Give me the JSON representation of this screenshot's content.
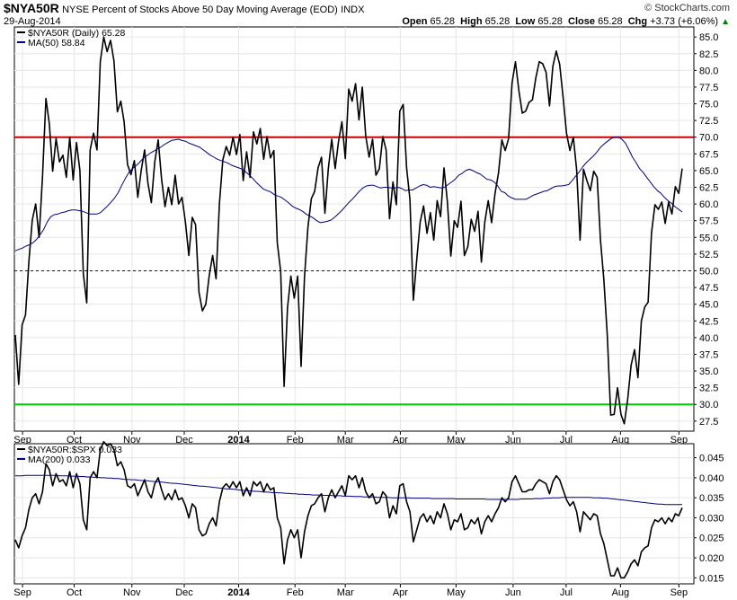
{
  "header": {
    "symbol": "$NYA50R",
    "title": "NYSE Percent of Stocks Above 50 Day Moving Average (EOD)",
    "exchange": "INDX",
    "date": "29-Aug-2014",
    "copyright": "© StockCharts.com",
    "open_label": "Open",
    "open": "65.28",
    "high_label": "High",
    "high": "65.28",
    "low_label": "Low",
    "low": "65.28",
    "close_label": "Close",
    "close": "65.28",
    "chg_label": "Chg",
    "chg": "+3.73 (+6.06%)",
    "chg_arrow": "▲"
  },
  "colors": {
    "price": "#000000",
    "ma": "#000080",
    "upper_line": "#cc0000",
    "lower_line": "#00cc00",
    "mid_line": "#0000cc",
    "grid": "#e6e6e6",
    "chg_up": "#008000"
  },
  "chart_data": [
    {
      "type": "line",
      "panel": "top",
      "legend": [
        {
          "key": "price",
          "label": "$NYA50R (Daily) 65.28"
        },
        {
          "key": "ma",
          "label": "MA(50) 58.84"
        }
      ],
      "x_ticks": [
        "Sep",
        "Oct",
        "Nov",
        "Dec",
        "2014",
        "Feb",
        "Mar",
        "Apr",
        "May",
        "Jun",
        "Jul",
        "Aug",
        "Sep"
      ],
      "ylim": [
        26,
        86.5
      ],
      "y_ticks": [
        "27.5",
        "30.0",
        "32.5",
        "35.0",
        "37.5",
        "40.0",
        "42.5",
        "45.0",
        "47.5",
        "50.0",
        "52.5",
        "55.0",
        "57.5",
        "60.0",
        "62.5",
        "65.0",
        "67.5",
        "70.0",
        "72.5",
        "75.0",
        "77.5",
        "80.0",
        "82.5",
        "85.0"
      ],
      "reference_lines": [
        70,
        50,
        30
      ],
      "series": [
        {
          "key": "price",
          "values": [
            40.4,
            33.0,
            41.9,
            43.4,
            51.3,
            57.6,
            60.0,
            55.0,
            64.1,
            75.8,
            72.0,
            64.9,
            69.8,
            66.3,
            67.3,
            64.0,
            70.0,
            63.6,
            69.2,
            65.0,
            49.6,
            45.2,
            68.1,
            70.6,
            68.1,
            81.3,
            85.0,
            82.8,
            84.5,
            81.4,
            73.8,
            75.4,
            72.3,
            65.9,
            64.4,
            66.5,
            61.0,
            65.0,
            68.1,
            63.1,
            60.2,
            66.3,
            69.6,
            63.7,
            59.6,
            62.5,
            59.9,
            64.3,
            60.0,
            61.0,
            57.3,
            52.3,
            58.0,
            56.9,
            46.8,
            44.0,
            45.0,
            49.3,
            52.3,
            48.8,
            60.0,
            66.6,
            68.6,
            67.3,
            70.0,
            67.4,
            70.4,
            63.5,
            67.8,
            64.0,
            70.8,
            69.0,
            71.3,
            66.7,
            70.1,
            66.9,
            68.0,
            54.2,
            49.9,
            32.7,
            44.5,
            49.2,
            45.9,
            49.2,
            35.7,
            49.1,
            56.5,
            60.8,
            61.9,
            65.4,
            67.0,
            58.6,
            65.3,
            69.7,
            65.3,
            69.3,
            72.3,
            66.8,
            77.2,
            75.4,
            78.0,
            72.6,
            77.5,
            70.2,
            67.0,
            69.7,
            64.3,
            65.3,
            70.1,
            68.1,
            57.8,
            63.3,
            59.9,
            73.9,
            74.9,
            65.4,
            60.7,
            45.6,
            51.7,
            57.3,
            59.7,
            55.6,
            58.7,
            54.6,
            60.5,
            58.1,
            65.4,
            60.3,
            52.2,
            57.5,
            56.5,
            60.4,
            52.3,
            53.6,
            57.7,
            55.9,
            58.9,
            51.3,
            57.3,
            60.5,
            57.2,
            61.6,
            64.6,
            69.6,
            68.0,
            69.8,
            78.1,
            81.3,
            77.0,
            73.6,
            73.9,
            75.2,
            75.6,
            78.9,
            81.3,
            81.0,
            79.7,
            74.7,
            80.6,
            82.9,
            80.9,
            76.0,
            70.6,
            68.0,
            70.0,
            65.1,
            54.6,
            65.2,
            63.5,
            62.0,
            64.9,
            64.0,
            54.6,
            48.6,
            40.3,
            28.4,
            28.5,
            32.5,
            28.5,
            27.1,
            30.8,
            35.9,
            38.2,
            34.0,
            42.5,
            44.6,
            45.3,
            55.7,
            59.9,
            59.2,
            60.3,
            57.1,
            60.3,
            58.5,
            62.6,
            61.6,
            65.3
          ]
        },
        {
          "key": "ma",
          "values": [
            53.0,
            53.2,
            53.4,
            53.7,
            53.9,
            54.2,
            54.7,
            55.4,
            56.2,
            57.3,
            58.1,
            58.4,
            58.5,
            58.7,
            58.8,
            59.0,
            59.1,
            59.1,
            59.0,
            58.9,
            58.7,
            58.5,
            58.5,
            58.5,
            58.7,
            59.2,
            59.7,
            60.3,
            60.9,
            61.7,
            62.8,
            63.8,
            64.7,
            65.3,
            65.7,
            66.2,
            66.8,
            67.2,
            67.6,
            67.9,
            68.2,
            68.5,
            68.9,
            69.2,
            69.5,
            69.6,
            69.7,
            69.5,
            69.4,
            69.1,
            68.9,
            68.7,
            68.5,
            68.1,
            67.7,
            67.3,
            67.0,
            66.7,
            66.5,
            66.3,
            66.1,
            65.8,
            65.6,
            65.4,
            65.2,
            64.8,
            64.3,
            63.8,
            63.2,
            62.7,
            62.2,
            62.0,
            61.8,
            61.4,
            61.2,
            61.0,
            60.6,
            60.2,
            59.7,
            59.4,
            59.2,
            58.9,
            58.5,
            58.2,
            57.9,
            57.5,
            57.2,
            57.3,
            57.4,
            57.6,
            58.0,
            58.5,
            59.0,
            59.6,
            60.2,
            60.7,
            61.3,
            61.9,
            62.4,
            62.7,
            62.8,
            62.8,
            62.6,
            62.4,
            62.5,
            62.5,
            62.4,
            62.4,
            62.5,
            62.3,
            62.0,
            62.1,
            62.1,
            62.4,
            62.7,
            62.9,
            62.8,
            62.5,
            62.6,
            62.5,
            62.4,
            62.5,
            62.9,
            63.3,
            63.7,
            64.3,
            64.6,
            65.0,
            65.2,
            65.0,
            64.7,
            64.5,
            64.1,
            63.7,
            63.6,
            63.3,
            62.7,
            61.9,
            61.7,
            61.2,
            60.9,
            60.7,
            60.7,
            60.7,
            60.7,
            61.0,
            61.3,
            61.5,
            61.7,
            61.9,
            62.0,
            62.3,
            62.6,
            62.7,
            62.7,
            62.8,
            62.9,
            63.5,
            64.2,
            64.8,
            65.6,
            66.2,
            66.7,
            67.2,
            67.8,
            68.5,
            69.0,
            69.4,
            69.8,
            70.0,
            70.0,
            69.7,
            69.1,
            68.1,
            67.0,
            66.2,
            65.3,
            64.7,
            64.0,
            63.3,
            62.6,
            62.0,
            61.6,
            61.0,
            60.5,
            60.1,
            59.6,
            59.2,
            58.8
          ]
        }
      ]
    },
    {
      "type": "line",
      "panel": "bottom",
      "legend": [
        {
          "key": "price",
          "label": "$NYA50R:$SPX 0.033"
        },
        {
          "key": "ma",
          "label": "MA(200) 0.033"
        }
      ],
      "x_ticks": [
        "Sep",
        "Oct",
        "Nov",
        "Dec",
        "2014",
        "Feb",
        "Mar",
        "Apr",
        "May",
        "Jun",
        "Jul",
        "Aug",
        "Sep"
      ],
      "ylim": [
        0.0135,
        0.0485
      ],
      "y_ticks": [
        "0.015",
        "0.020",
        "0.025",
        "0.030",
        "0.035",
        "0.040",
        "0.045"
      ],
      "series": [
        {
          "key": "price",
          "values": [
            0.0245,
            0.0225,
            0.0255,
            0.0275,
            0.032,
            0.035,
            0.036,
            0.0335,
            0.0365,
            0.0435,
            0.042,
            0.038,
            0.041,
            0.039,
            0.0395,
            0.038,
            0.0415,
            0.0375,
            0.041,
            0.0385,
            0.0295,
            0.027,
            0.04,
            0.0415,
            0.04,
            0.047,
            0.049,
            0.048,
            0.0485,
            0.047,
            0.043,
            0.044,
            0.042,
            0.038,
            0.0375,
            0.0385,
            0.0355,
            0.0375,
            0.0395,
            0.0365,
            0.035,
            0.0385,
            0.04,
            0.037,
            0.0345,
            0.036,
            0.0345,
            0.037,
            0.0345,
            0.035,
            0.033,
            0.03,
            0.0335,
            0.0325,
            0.027,
            0.0255,
            0.026,
            0.0285,
            0.03,
            0.028,
            0.034,
            0.0375,
            0.0385,
            0.0375,
            0.039,
            0.0375,
            0.039,
            0.0355,
            0.0375,
            0.0355,
            0.039,
            0.038,
            0.039,
            0.0365,
            0.0385,
            0.037,
            0.0375,
            0.03,
            0.0275,
            0.0185,
            0.0245,
            0.027,
            0.025,
            0.027,
            0.02,
            0.0265,
            0.0305,
            0.033,
            0.0335,
            0.035,
            0.036,
            0.0315,
            0.035,
            0.037,
            0.035,
            0.0365,
            0.038,
            0.0355,
            0.0405,
            0.0395,
            0.0405,
            0.0375,
            0.04,
            0.0365,
            0.035,
            0.036,
            0.0335,
            0.034,
            0.0365,
            0.0355,
            0.03,
            0.033,
            0.031,
            0.038,
            0.0385,
            0.034,
            0.0315,
            0.024,
            0.027,
            0.03,
            0.031,
            0.029,
            0.0305,
            0.0285,
            0.0315,
            0.03,
            0.0335,
            0.031,
            0.027,
            0.0295,
            0.029,
            0.031,
            0.027,
            0.0275,
            0.0295,
            0.0285,
            0.03,
            0.026,
            0.029,
            0.0305,
            0.029,
            0.031,
            0.0325,
            0.035,
            0.034,
            0.035,
            0.039,
            0.0405,
            0.0385,
            0.0365,
            0.0365,
            0.037,
            0.037,
            0.0385,
            0.0395,
            0.039,
            0.0385,
            0.036,
            0.039,
            0.0405,
            0.0395,
            0.037,
            0.0345,
            0.033,
            0.034,
            0.0315,
            0.0265,
            0.0315,
            0.0305,
            0.0295,
            0.031,
            0.0305,
            0.026,
            0.0235,
            0.0195,
            0.0155,
            0.0155,
            0.0175,
            0.015,
            0.015,
            0.0165,
            0.0185,
            0.0195,
            0.018,
            0.0215,
            0.0225,
            0.023,
            0.0275,
            0.0295,
            0.029,
            0.03,
            0.0285,
            0.03,
            0.029,
            0.031,
            0.0305,
            0.0325
          ]
        },
        {
          "key": "ma",
          "values": [
            0.0405,
            0.0405,
            0.0405,
            0.0406,
            0.0406,
            0.0406,
            0.0406,
            0.0406,
            0.0406,
            0.0406,
            0.0406,
            0.0406,
            0.0406,
            0.0405,
            0.0405,
            0.0405,
            0.0404,
            0.0404,
            0.0404,
            0.0403,
            0.0403,
            0.0402,
            0.0402,
            0.0401,
            0.0401,
            0.04,
            0.04,
            0.0399,
            0.0399,
            0.0398,
            0.0398,
            0.0397,
            0.0396,
            0.0396,
            0.0395,
            0.0395,
            0.0394,
            0.0393,
            0.0393,
            0.0392,
            0.0391,
            0.039,
            0.039,
            0.0389,
            0.0388,
            0.0387,
            0.0386,
            0.0386,
            0.0385,
            0.0384,
            0.0383,
            0.0382,
            0.0381,
            0.038,
            0.0379,
            0.0379,
            0.0378,
            0.0377,
            0.0376,
            0.0375,
            0.0374,
            0.0373,
            0.0372,
            0.0372,
            0.0371,
            0.037,
            0.0369,
            0.0368,
            0.0368,
            0.0367,
            0.0366,
            0.0366,
            0.0365,
            0.0364,
            0.0364,
            0.0363,
            0.0363,
            0.0362,
            0.0362,
            0.0361,
            0.0361,
            0.036,
            0.036,
            0.0359,
            0.0359,
            0.0358,
            0.0358,
            0.0357,
            0.0357,
            0.0357,
            0.0356,
            0.0356,
            0.0356,
            0.0355,
            0.0355,
            0.0355,
            0.0354,
            0.0354,
            0.0354,
            0.0353,
            0.0353,
            0.0353,
            0.0352,
            0.0352,
            0.0352,
            0.0352,
            0.0351,
            0.0351,
            0.0351,
            0.0351,
            0.035,
            0.035,
            0.035,
            0.035,
            0.035,
            0.035,
            0.0349,
            0.0349,
            0.0349,
            0.0349,
            0.0349,
            0.0349,
            0.0348,
            0.0348,
            0.0348,
            0.0348,
            0.0348,
            0.0348,
            0.0348,
            0.0347,
            0.0347,
            0.0347,
            0.0347,
            0.0347,
            0.0347,
            0.0347,
            0.0347,
            0.0347,
            0.0346,
            0.0346,
            0.0346,
            0.0346,
            0.0346,
            0.0346,
            0.0346,
            0.0346,
            0.0346,
            0.0346,
            0.0347,
            0.0347,
            0.0347,
            0.0347,
            0.0348,
            0.0348,
            0.0348,
            0.0349,
            0.0349,
            0.035,
            0.035,
            0.035,
            0.0351,
            0.0351,
            0.0351,
            0.0351,
            0.0351,
            0.0351,
            0.0351,
            0.0351,
            0.0351,
            0.035,
            0.035,
            0.035,
            0.0349,
            0.0349,
            0.0348,
            0.0347,
            0.0346,
            0.0345,
            0.0344,
            0.0343,
            0.0342,
            0.0341,
            0.034,
            0.0339,
            0.0338,
            0.0337,
            0.0336,
            0.0335,
            0.0334,
            0.0334,
            0.0333,
            0.0333,
            0.0333,
            0.0333,
            0.0333,
            0.0333
          ]
        }
      ]
    }
  ]
}
